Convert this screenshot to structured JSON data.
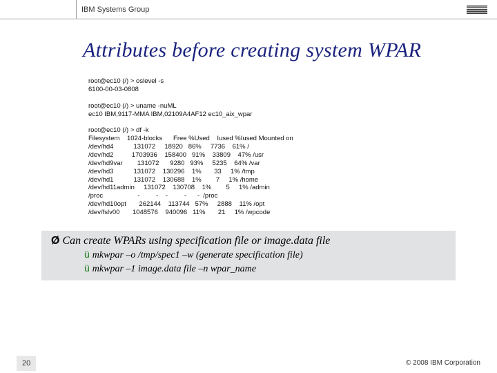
{
  "header": {
    "group": "IBM Systems Group",
    "logo_color": "#3b3b3b"
  },
  "title": "Attributes before creating system WPAR",
  "terminal": {
    "block1": "root@ec10 (/) > oslevel -s\n6100-00-03-0808",
    "block2": "root@ec10 (/) > uname -nuML\nec10 IBM,9117-MMA IBM,02109A4AF12 ec10_aix_wpar",
    "block3": "root@ec10 (/) > df -k\nFilesystem    1024-blocks      Free %Used    Iused %Iused Mounted on\n/dev/hd4           131072     18920   86%     7736    61% /\n/dev/hd2          1703936    158400   91%    33809    47% /usr\n/dev/hd9var        131072      9280   93%     5235    64% /var\n/dev/hd3           131072    130296    1%       33     1% /tmp\n/dev/hd1           131072    130688    1%        7     1% /home\n/dev/hd11admin     131072    130708    1%        5     1% /admin\n/proc                   -         -    -         -      -  /proc\n/dev/hd10opt       262144    113744   57%     2888    11% /opt\n/dev/fslv00       1048576    940096   11%       21     1% /wpcode"
  },
  "note": {
    "line1": "Can create WPARs using specification file or image.data file",
    "sub1": "mkwpar –o /tmp/spec1 –w (generate specification file)",
    "sub2": "mkwpar –1 image.data file –n wpar_name"
  },
  "footer": {
    "page": "20",
    "copyright": "© 2008 IBM Corporation"
  },
  "colors": {
    "title_color": "#1a237e",
    "note_bg": "#e0e2e3",
    "check_color": "#1a7a1a"
  }
}
